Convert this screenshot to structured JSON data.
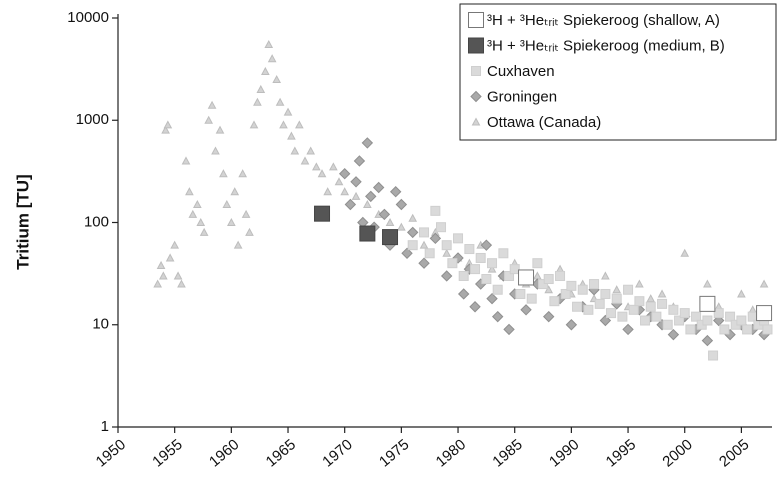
{
  "chart_data": {
    "type": "scatter",
    "ylabel": "Tritium [TU]",
    "xlim": [
      1950,
      2007.7
    ],
    "ylim": [
      1,
      10000
    ],
    "ylog": true,
    "xticks": [
      1950,
      1955,
      1960,
      1965,
      1970,
      1975,
      1980,
      1985,
      1990,
      1995,
      2000,
      2005
    ],
    "yticks": [
      1,
      10,
      100,
      1000,
      10000
    ],
    "legend": "upper right",
    "series": [
      {
        "name": "³H + ³Heₜᵣᵢₜ Spiekeroog (shallow, A)",
        "color": "#ffffff",
        "marker": "square-large",
        "x": [
          1986,
          2002,
          2007
        ],
        "values": [
          29,
          16,
          13
        ]
      },
      {
        "name": "³H + ³Heₜᵣᵢₜ Spiekeroog (medium, B)",
        "color": "#555555",
        "marker": "square-large",
        "x": [
          1968,
          1972,
          1974
        ],
        "values": [
          122,
          78,
          72
        ]
      },
      {
        "name": "Cuxhaven",
        "color": "#dadada",
        "marker": "square",
        "x": [
          1976,
          1977,
          1977.5,
          1978,
          1978.5,
          1979,
          1979.5,
          1980,
          1980.5,
          1981,
          1981.5,
          1982,
          1982.5,
          1983,
          1983.5,
          1984,
          1984.5,
          1985,
          1985.5,
          1986,
          1986.5,
          1987,
          1987.5,
          1988,
          1988.5,
          1989,
          1989.5,
          1990,
          1990.5,
          1991,
          1991.5,
          1992,
          1992.5,
          1993,
          1993.5,
          1994,
          1994.5,
          1995,
          1995.5,
          1996,
          1996.5,
          1997,
          1997.5,
          1998,
          1998.5,
          1999,
          1999.5,
          2000,
          2000.5,
          2001,
          2001.5,
          2002,
          2002.5,
          2003,
          2003.5,
          2004,
          2004.5,
          2005,
          2005.5,
          2006,
          2006.5,
          2007,
          2007.3
        ],
        "values": [
          60,
          80,
          50,
          130,
          90,
          60,
          40,
          70,
          30,
          55,
          35,
          45,
          28,
          40,
          22,
          50,
          30,
          35,
          20,
          30,
          18,
          40,
          25,
          28,
          17,
          30,
          20,
          24,
          15,
          22,
          14,
          25,
          16,
          20,
          13,
          18,
          12,
          22,
          14,
          17,
          11,
          15,
          12,
          16,
          10,
          14,
          11,
          13,
          9,
          12,
          10,
          11,
          5,
          13,
          9,
          12,
          10,
          11,
          9,
          12,
          10,
          11,
          9
        ]
      },
      {
        "name": "Groningen",
        "color": "#a9a9a9",
        "marker": "diamond",
        "x": [
          1970,
          1970.5,
          1971,
          1971.3,
          1971.6,
          1972,
          1972.3,
          1972.6,
          1973,
          1973.5,
          1974,
          1974.5,
          1975,
          1975.5,
          1976,
          1977,
          1978,
          1979,
          1980,
          1980.5,
          1981,
          1981.5,
          1982,
          1982.5,
          1983,
          1983.5,
          1984,
          1984.5,
          1985,
          1986,
          1987,
          1988,
          1989,
          1990,
          1991,
          1992,
          1993,
          1994,
          1995,
          1996,
          1997,
          1998,
          1999,
          2000,
          2001,
          2002,
          2003,
          2004,
          2005,
          2006,
          2007
        ],
        "values": [
          300,
          150,
          250,
          400,
          100,
          600,
          180,
          90,
          220,
          120,
          60,
          200,
          150,
          50,
          80,
          40,
          70,
          30,
          45,
          20,
          35,
          15,
          25,
          60,
          18,
          12,
          30,
          9,
          20,
          14,
          25,
          12,
          18,
          10,
          15,
          22,
          11,
          16,
          9,
          14,
          12,
          10,
          8,
          12,
          9,
          7,
          11,
          8,
          10,
          9,
          8
        ]
      },
      {
        "name": "Ottawa (Canada)",
        "color": "#d3d3d3",
        "marker": "triangle",
        "x": [
          1953.5,
          1953.8,
          1954,
          1954.2,
          1954.4,
          1954.6,
          1955,
          1955.3,
          1955.6,
          1956,
          1956.3,
          1956.6,
          1957,
          1957.3,
          1957.6,
          1958,
          1958.3,
          1958.6,
          1959,
          1959.3,
          1959.6,
          1960,
          1960.3,
          1960.6,
          1961,
          1961.3,
          1961.6,
          1962,
          1962.3,
          1962.6,
          1963,
          1963.3,
          1963.6,
          1964,
          1964.3,
          1964.6,
          1965,
          1965.3,
          1965.6,
          1966,
          1966.5,
          1967,
          1967.5,
          1968,
          1968.5,
          1969,
          1969.5,
          1970,
          1971,
          1972,
          1973,
          1974,
          1975,
          1976,
          1977,
          1978,
          1979,
          1980,
          1981,
          1982,
          1983,
          1984,
          1985,
          1986,
          1987,
          1988,
          1989,
          1990,
          1991,
          1992,
          1993,
          1994,
          1995,
          1996,
          1997,
          1998,
          1999,
          2000,
          2001,
          2002,
          2003,
          2004,
          2005,
          2006,
          2007
        ],
        "values": [
          25,
          38,
          30,
          800,
          900,
          45,
          60,
          30,
          25,
          400,
          200,
          120,
          150,
          100,
          80,
          1000,
          1400,
          500,
          800,
          300,
          150,
          100,
          200,
          60,
          300,
          120,
          80,
          900,
          1500,
          2000,
          3000,
          5500,
          4000,
          2500,
          1500,
          900,
          1200,
          700,
          500,
          900,
          400,
          500,
          350,
          300,
          200,
          350,
          250,
          200,
          180,
          150,
          120,
          100,
          90,
          110,
          60,
          80,
          50,
          45,
          40,
          60,
          35,
          30,
          40,
          25,
          30,
          22,
          35,
          20,
          25,
          18,
          30,
          22,
          15,
          25,
          18,
          20,
          15,
          50,
          12,
          25,
          15,
          12,
          20,
          14,
          25
        ]
      }
    ]
  }
}
